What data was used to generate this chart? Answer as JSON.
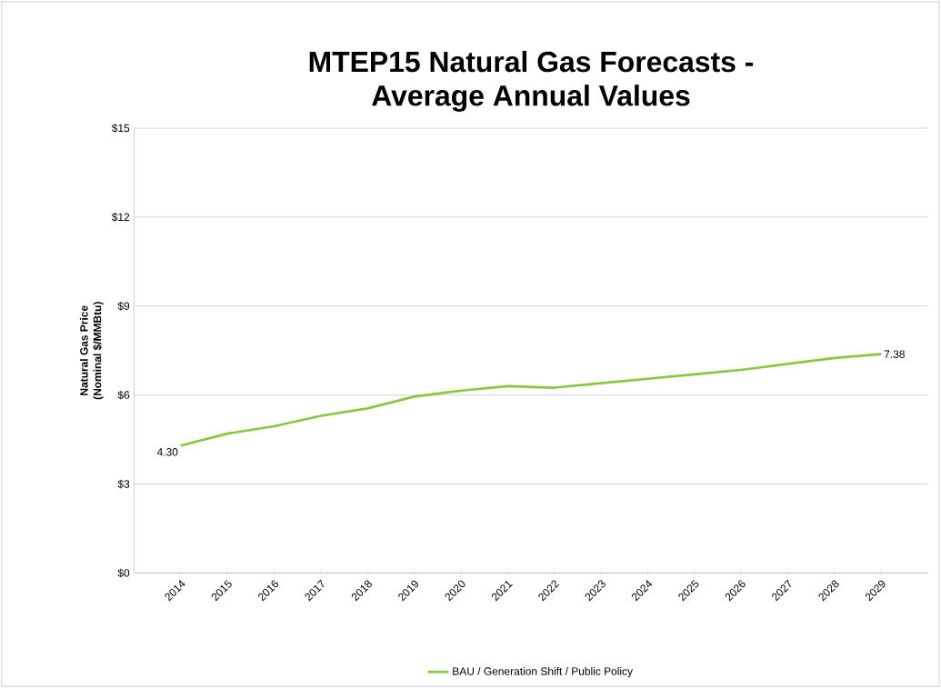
{
  "chart_data": {
    "type": "line",
    "title": "MTEP15 Natural Gas Forecasts -\nAverage Annual Values",
    "ylabel": "Natural Gas Price\n(Nominal $/MMBtu)",
    "categories": [
      "2014",
      "2015",
      "2016",
      "2017",
      "2018",
      "2019",
      "2020",
      "2021",
      "2022",
      "2023",
      "2024",
      "2025",
      "2026",
      "2027",
      "2028",
      "2029"
    ],
    "series": [
      {
        "name": "BAU / Generation Shift / Public Policy",
        "color": "#8cc63e",
        "values": [
          4.3,
          4.7,
          4.95,
          5.3,
          5.55,
          5.95,
          6.15,
          6.3,
          6.25,
          6.4,
          6.55,
          6.7,
          6.85,
          7.05,
          7.25,
          7.38
        ],
        "value_labels": [
          "4.30",
          null,
          null,
          null,
          null,
          null,
          null,
          null,
          null,
          null,
          null,
          null,
          null,
          null,
          null,
          "7.38"
        ]
      }
    ],
    "ylim": [
      0,
      15
    ],
    "yticks": [
      {
        "value": 0,
        "label": "$0"
      },
      {
        "value": 3,
        "label": "$3"
      },
      {
        "value": 6,
        "label": "$6"
      },
      {
        "value": 9,
        "label": "$9"
      },
      {
        "value": 12,
        "label": "$12"
      },
      {
        "value": 15,
        "label": "$15"
      }
    ],
    "grid": "y",
    "legend": "bottom",
    "marker": "none",
    "line_style": "solid"
  }
}
